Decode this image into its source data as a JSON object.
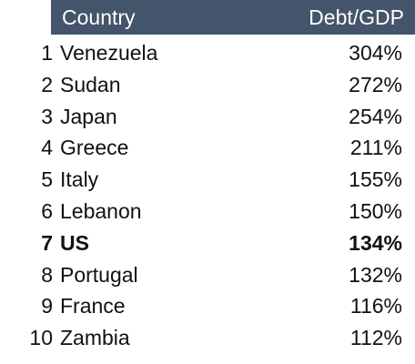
{
  "table": {
    "header": [
      "Country",
      "Debt/GDP"
    ],
    "rows": [
      {
        "rank": "1",
        "country": "Venezuela",
        "value": "304%"
      },
      {
        "rank": "2",
        "country": "Sudan",
        "value": "272%"
      },
      {
        "rank": "3",
        "country": "Japan",
        "value": "254%"
      },
      {
        "rank": "4",
        "country": "Greece",
        "value": "211%"
      },
      {
        "rank": "5",
        "country": "Italy",
        "value": "155%"
      },
      {
        "rank": "6",
        "country": "Lebanon",
        "value": "150%"
      },
      {
        "rank": "7",
        "country": "US",
        "value": "134%",
        "bold": true
      },
      {
        "rank": "8",
        "country": "Portugal",
        "value": "132%"
      },
      {
        "rank": "9",
        "country": "France",
        "value": "116%"
      },
      {
        "rank": "10",
        "country": "Zambia",
        "value": "112%"
      }
    ]
  }
}
